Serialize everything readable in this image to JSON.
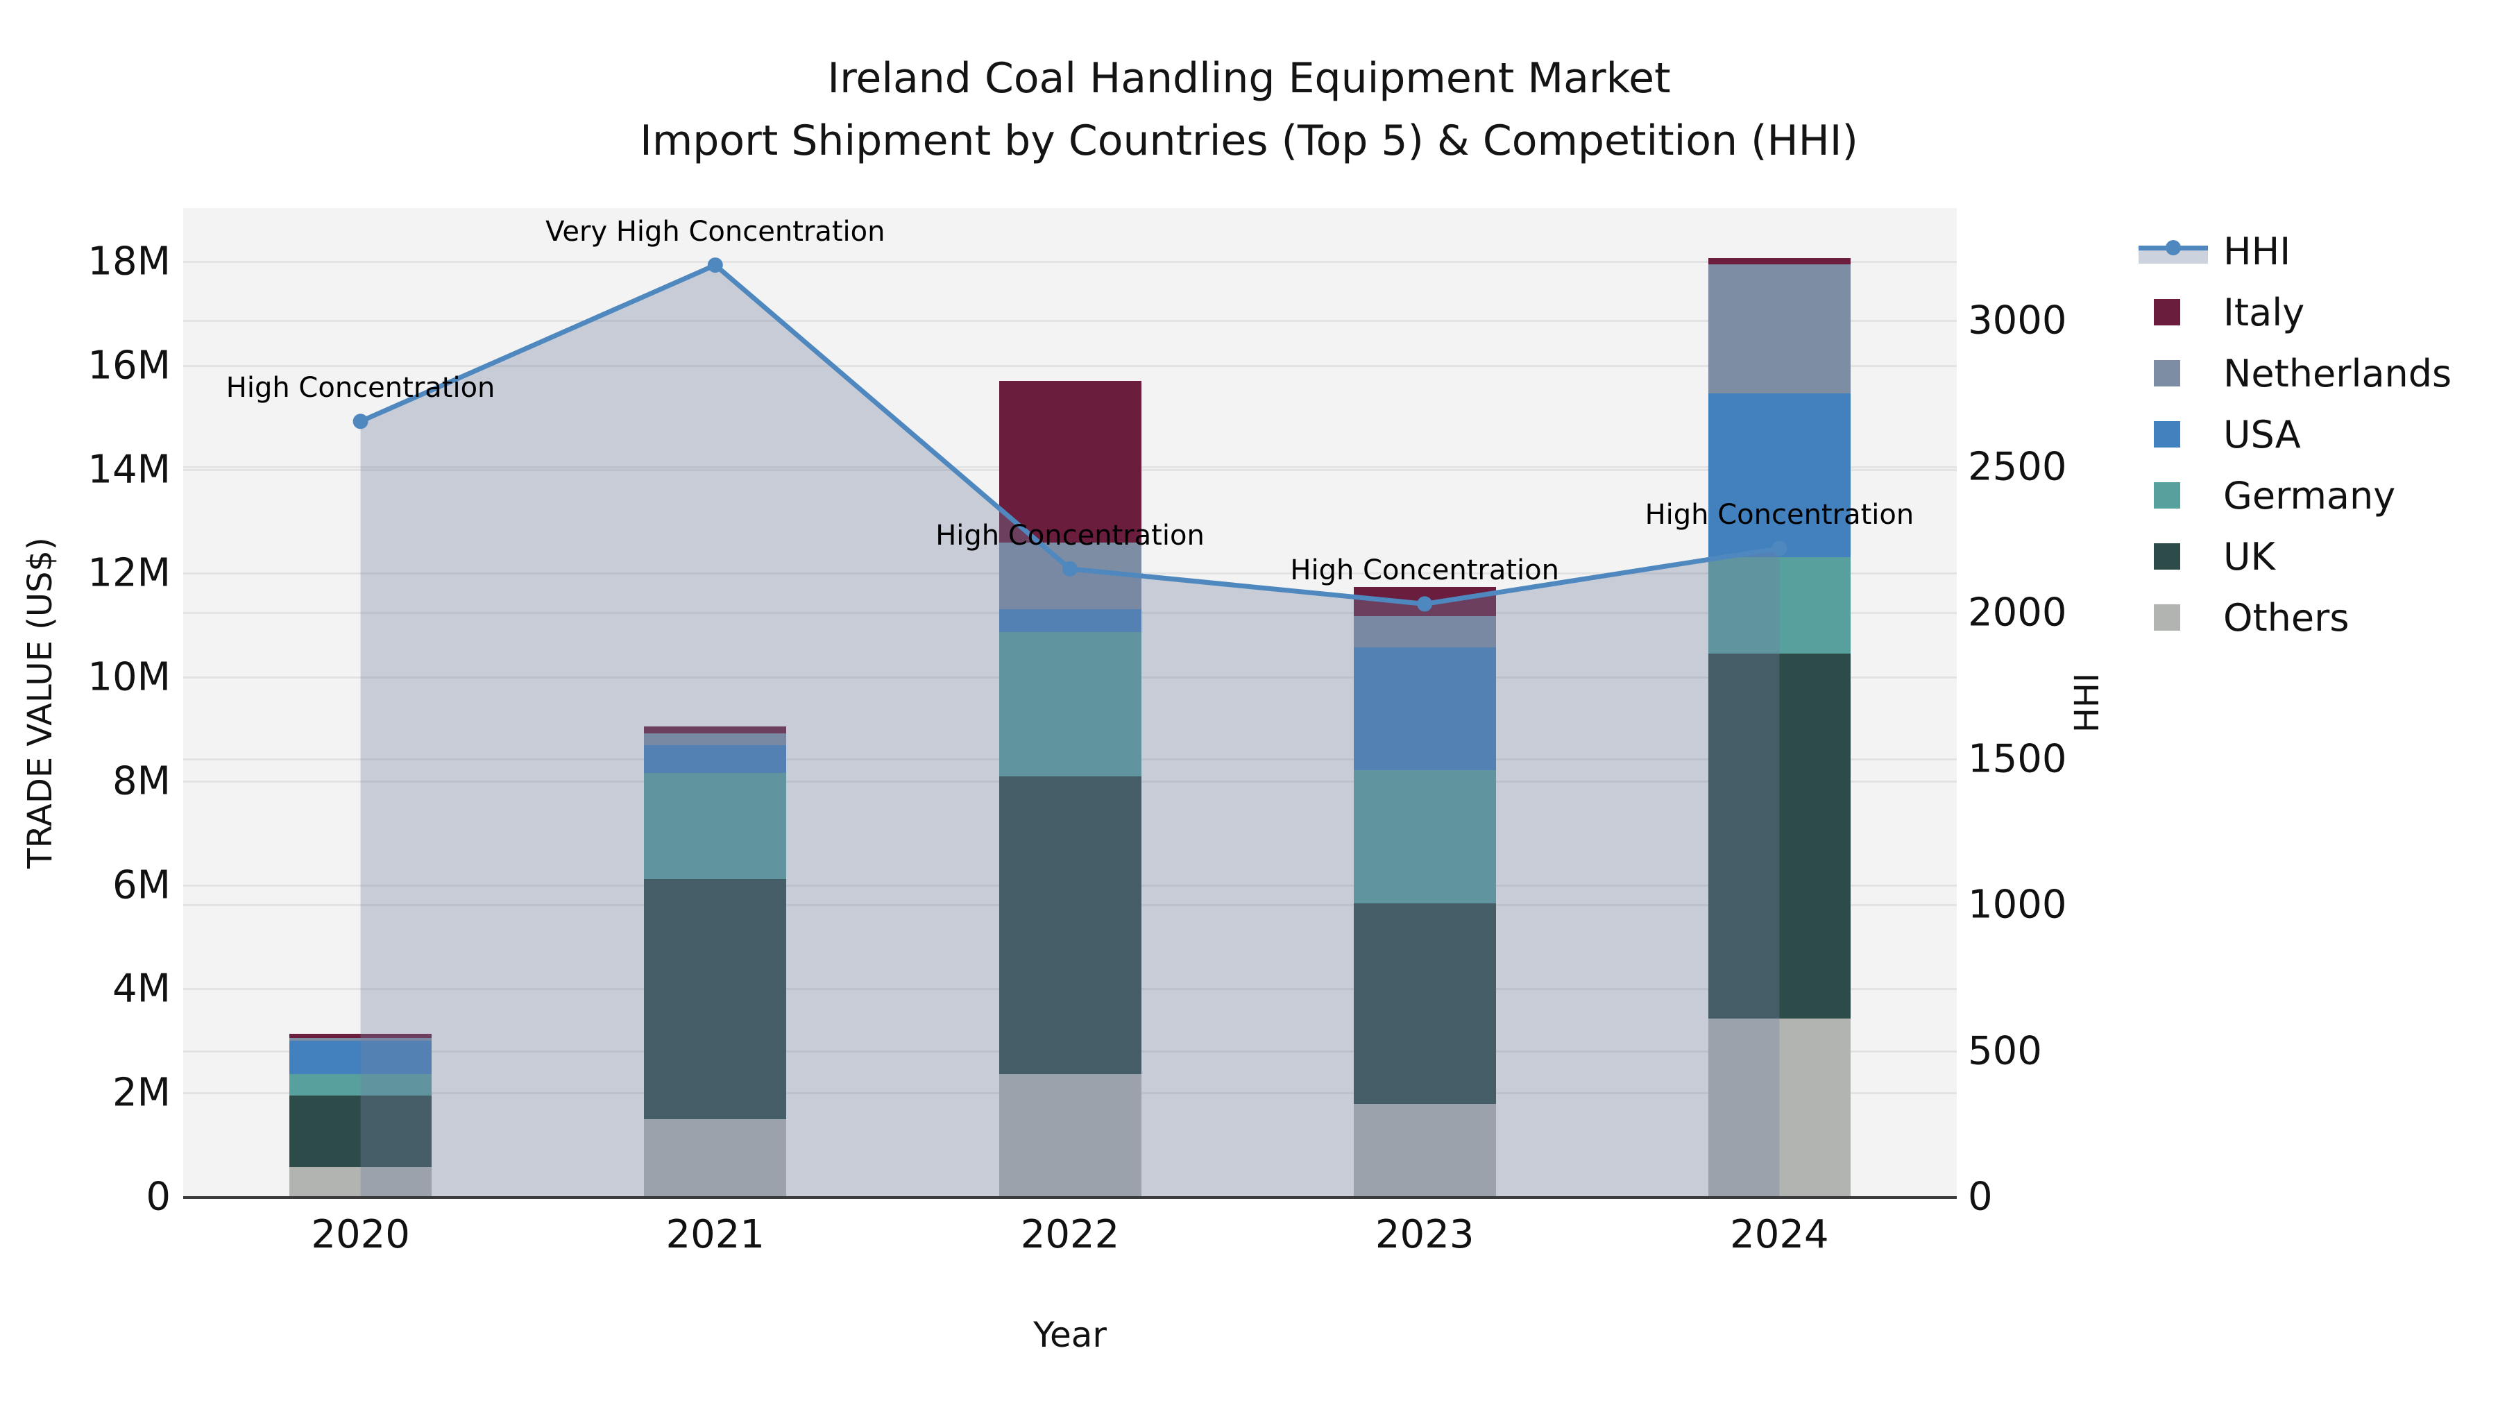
{
  "title": {
    "line1": "Ireland Coal Handling Equipment Market",
    "line2": "Import Shipment by Countries (Top 5) & Competition (HHI)"
  },
  "axes": {
    "left": {
      "title": "TRADE VALUE (US$)",
      "tick_labels": [
        "0",
        "2M",
        "4M",
        "6M",
        "8M",
        "10M",
        "12M",
        "14M",
        "16M",
        "18M"
      ],
      "tick_values": [
        0,
        2,
        4,
        6,
        8,
        10,
        12,
        14,
        16,
        18
      ]
    },
    "right": {
      "title": "HHI",
      "tick_labels": [
        "0",
        "500",
        "1000",
        "1500",
        "2000",
        "2500",
        "3000"
      ],
      "tick_values": [
        0,
        500,
        1000,
        1500,
        2000,
        2500,
        3000
      ]
    },
    "x": {
      "title": "Year"
    }
  },
  "legend": {
    "entries": [
      {
        "label": "HHI",
        "type": "line"
      },
      {
        "label": "Italy",
        "type": "swatch",
        "color": "#6B1D3D"
      },
      {
        "label": "Netherlands",
        "type": "swatch",
        "color": "#7D8EA4"
      },
      {
        "label": "USA",
        "type": "swatch",
        "color": "#4381BE"
      },
      {
        "label": "Germany",
        "type": "swatch",
        "color": "#57A09E"
      },
      {
        "label": "UK",
        "type": "swatch",
        "color": "#2D4B49"
      },
      {
        "label": "Others",
        "type": "swatch",
        "color": "#B2B4B2"
      }
    ]
  },
  "colors": {
    "hhi_line": "#4E88BE",
    "hhi_area": "rgba(115,130,162,0.34)",
    "plot_bg": "#F3F3F3",
    "gridline": "#E3E3E3",
    "axis_line": "#3C3C3C",
    "italy": "#6B1D3D",
    "netherlands": "#7D8EA4",
    "usa": "#4381BE",
    "germany": "#57A09E",
    "uk": "#2D4B49",
    "others": "#B2B4B2"
  },
  "chart_data": {
    "type": "combo-stacked-bar-line",
    "categories": [
      "2020",
      "2021",
      "2022",
      "2023",
      "2024"
    ],
    "bar_units": "million US$",
    "bar_series_bottom_to_top": [
      {
        "name": "Others",
        "color": "#B2B4B2",
        "values": [
          0.57,
          1.5,
          2.36,
          1.79,
          3.43
        ]
      },
      {
        "name": "UK",
        "color": "#2D4B49",
        "values": [
          1.38,
          4.62,
          5.73,
          3.86,
          7.02
        ]
      },
      {
        "name": "Germany",
        "color": "#57A09E",
        "values": [
          0.41,
          2.04,
          2.78,
          2.56,
          1.86
        ]
      },
      {
        "name": "USA",
        "color": "#4381BE",
        "values": [
          0.65,
          0.53,
          0.44,
          2.36,
          3.16
        ]
      },
      {
        "name": "Netherlands",
        "color": "#7D8EA4",
        "values": [
          0.05,
          0.23,
          1.28,
          0.61,
          2.48
        ]
      },
      {
        "name": "Italy",
        "color": "#6B1D3D",
        "values": [
          0.08,
          0.13,
          3.12,
          0.56,
          0.12
        ]
      }
    ],
    "bar_totals": [
      3.14,
      9.05,
      15.71,
      11.74,
      18.07
    ],
    "line_series": {
      "name": "HHI",
      "color": "#4E88BE",
      "area_fill": "rgba(115,130,162,0.34)",
      "values": [
        2655,
        3190,
        2150,
        2030,
        2220
      ]
    },
    "annotations": [
      {
        "year": "2020",
        "text": "High Concentration"
      },
      {
        "year": "2021",
        "text": "Very High Concentration"
      },
      {
        "year": "2022",
        "text": "High Concentration"
      },
      {
        "year": "2023",
        "text": "High Concentration"
      },
      {
        "year": "2024",
        "text": "High Concentration"
      }
    ],
    "ylim_left_millions": [
      0,
      19.03
    ],
    "ylim_right_hhi": [
      0,
      3385
    ],
    "grid": true,
    "legend_position": "right"
  }
}
